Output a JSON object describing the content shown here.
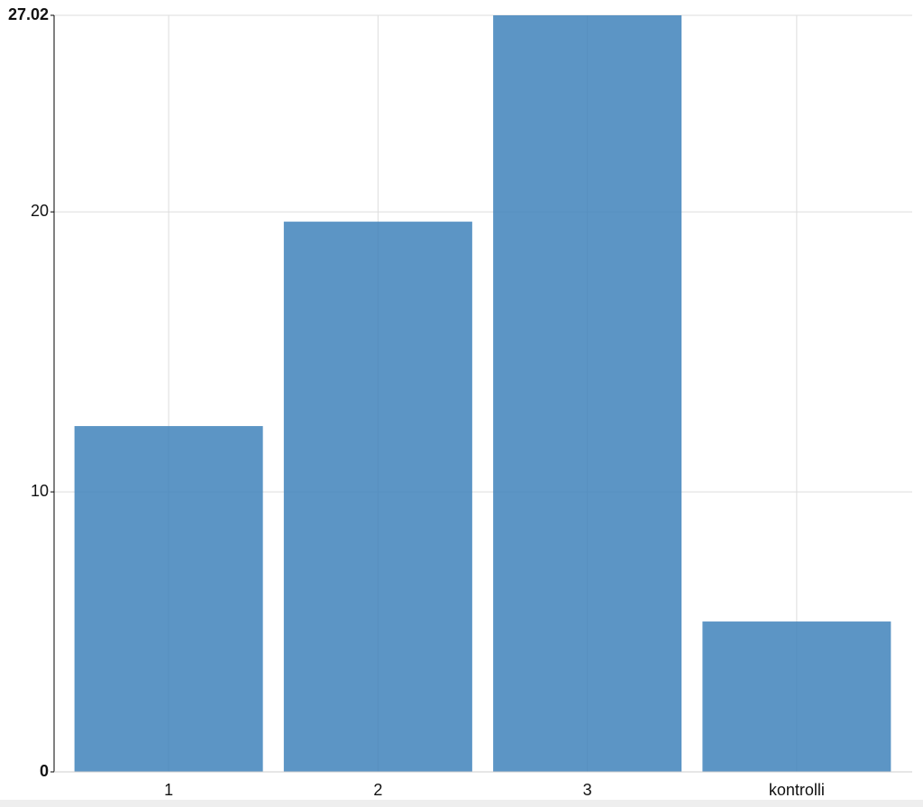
{
  "chart_data": {
    "type": "bar",
    "categories": [
      "1",
      "2",
      "3",
      "kontrolli"
    ],
    "values": [
      12.35,
      19.65,
      27.02,
      5.37
    ],
    "color": "#3f83bb",
    "ylim": [
      0,
      27.02
    ],
    "yticks": [
      0,
      10,
      20,
      27.02
    ],
    "grid": true
  }
}
